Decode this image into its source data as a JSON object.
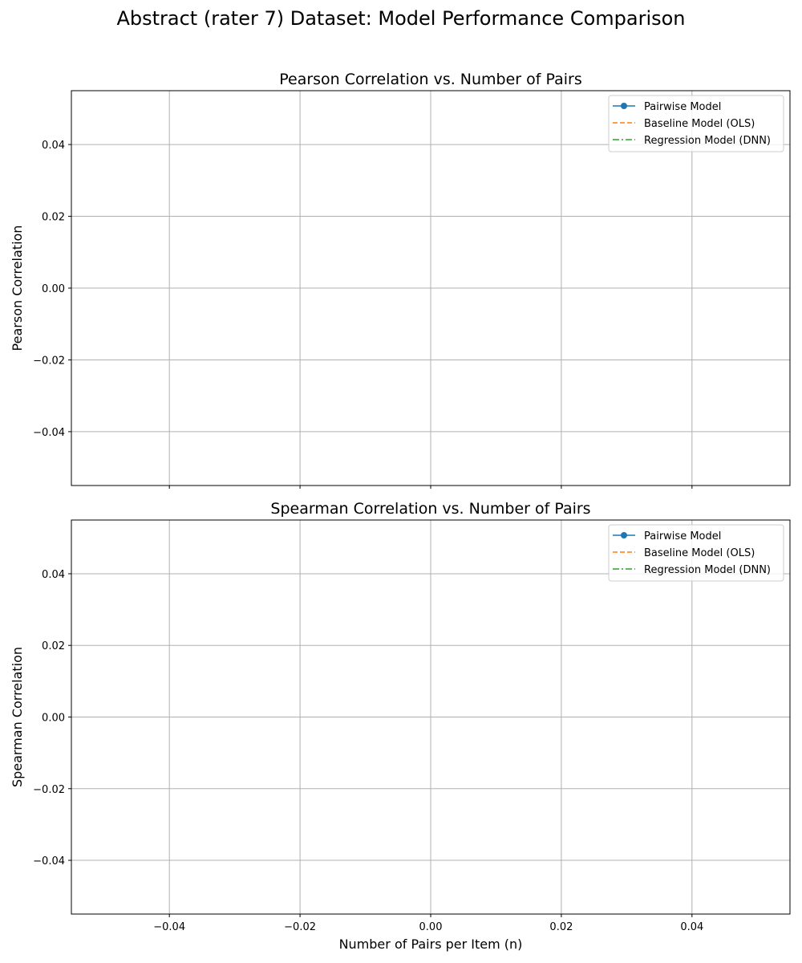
{
  "figure": {
    "suptitle": "Abstract (rater 7) Dataset: Model Performance Comparison"
  },
  "chart_data": [
    {
      "type": "line",
      "title": "Pearson Correlation vs. Number of Pairs",
      "xlabel": "",
      "ylabel": "Pearson Correlation",
      "xlim": [
        -0.055,
        0.055
      ],
      "ylim": [
        -0.055,
        0.055
      ],
      "xticks": [
        -0.04,
        -0.02,
        0.0,
        0.02,
        0.04
      ],
      "xtick_labels": [],
      "yticks": [
        -0.04,
        -0.02,
        0.0,
        0.02,
        0.04
      ],
      "ytick_labels": [
        "−0.04",
        "−0.02",
        "0.00",
        "0.02",
        "0.04"
      ],
      "grid": true,
      "legend_position": "top-right",
      "series": [
        {
          "name": "Pairwise Model",
          "color": "#1f77b4",
          "linestyle": "solid",
          "marker": "circle",
          "x": [],
          "values": []
        },
        {
          "name": "Baseline Model (OLS)",
          "color": "#ff7f0e",
          "linestyle": "dashed",
          "marker": "none",
          "x": [],
          "values": []
        },
        {
          "name": "Regression Model (DNN)",
          "color": "#2ca02c",
          "linestyle": "dashdot",
          "marker": "none",
          "x": [],
          "values": []
        }
      ]
    },
    {
      "type": "line",
      "title": "Spearman Correlation vs. Number of Pairs",
      "xlabel": "Number of Pairs per Item (n)",
      "ylabel": "Spearman Correlation",
      "xlim": [
        -0.055,
        0.055
      ],
      "ylim": [
        -0.055,
        0.055
      ],
      "xticks": [
        -0.04,
        -0.02,
        0.0,
        0.02,
        0.04
      ],
      "xtick_labels": [
        "−0.04",
        "−0.02",
        "0.00",
        "0.02",
        "0.04"
      ],
      "yticks": [
        -0.04,
        -0.02,
        0.0,
        0.02,
        0.04
      ],
      "ytick_labels": [
        "−0.04",
        "−0.02",
        "0.00",
        "0.02",
        "0.04"
      ],
      "grid": true,
      "legend_position": "top-right",
      "series": [
        {
          "name": "Pairwise Model",
          "color": "#1f77b4",
          "linestyle": "solid",
          "marker": "circle",
          "x": [],
          "values": []
        },
        {
          "name": "Baseline Model (OLS)",
          "color": "#ff7f0e",
          "linestyle": "dashed",
          "marker": "none",
          "x": [],
          "values": []
        },
        {
          "name": "Regression Model (DNN)",
          "color": "#2ca02c",
          "linestyle": "dashdot",
          "marker": "none",
          "x": [],
          "values": []
        }
      ]
    }
  ]
}
